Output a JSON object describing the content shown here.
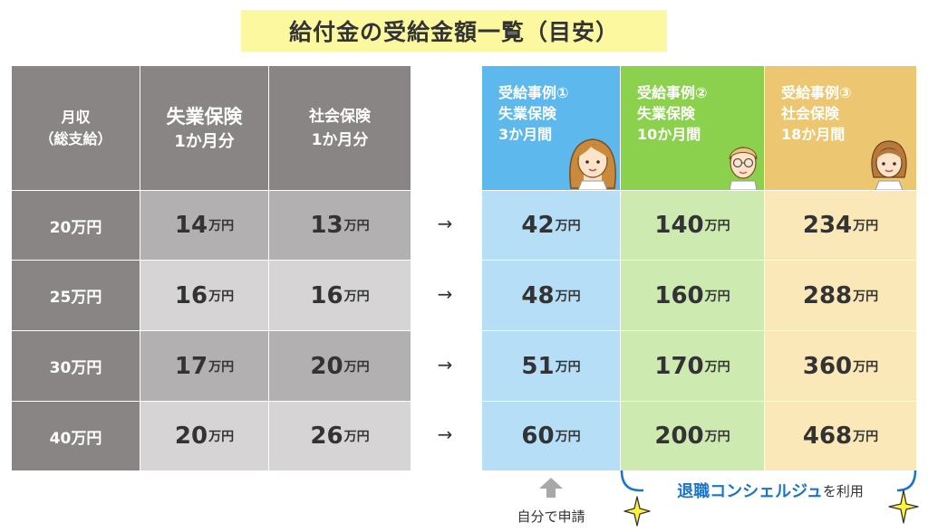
{
  "title": "給付金の受給金額一覧（目安）",
  "headers": {
    "monthly_income": [
      "月収",
      "（総支給）"
    ],
    "unemployment": [
      "失業保険",
      "1か月分"
    ],
    "social": [
      "社会保険",
      "1か月分"
    ],
    "case1": [
      "受給事例①",
      "失業保険",
      "3か月間"
    ],
    "case2": [
      "受給事例②",
      "失業保険",
      "10か月間"
    ],
    "case3": [
      "受給事例③",
      "社会保険",
      "18か月間"
    ]
  },
  "unit": "万円",
  "arrow": "→",
  "rows": [
    {
      "income": "20万円",
      "unemp": "14",
      "social": "13",
      "c1": "42",
      "c2": "140",
      "c3": "234"
    },
    {
      "income": "25万円",
      "unemp": "16",
      "social": "16",
      "c1": "48",
      "c2": "160",
      "c3": "288"
    },
    {
      "income": "30万円",
      "unemp": "17",
      "social": "20",
      "c1": "51",
      "c2": "170",
      "c3": "360"
    },
    {
      "income": "40万円",
      "unemp": "20",
      "social": "26",
      "c1": "60",
      "c2": "200",
      "c3": "468"
    }
  ],
  "footer": {
    "self_apply": "自分で申請",
    "concierge_brand": "退職コンシェルジュ",
    "concierge_suffix": "を利用"
  },
  "colors": {
    "case1": "#5db8ee",
    "case2": "#8bd14e",
    "case3": "#ecc670",
    "brand_text": "#1a75c9",
    "title_bg": "#fbf8a0"
  }
}
